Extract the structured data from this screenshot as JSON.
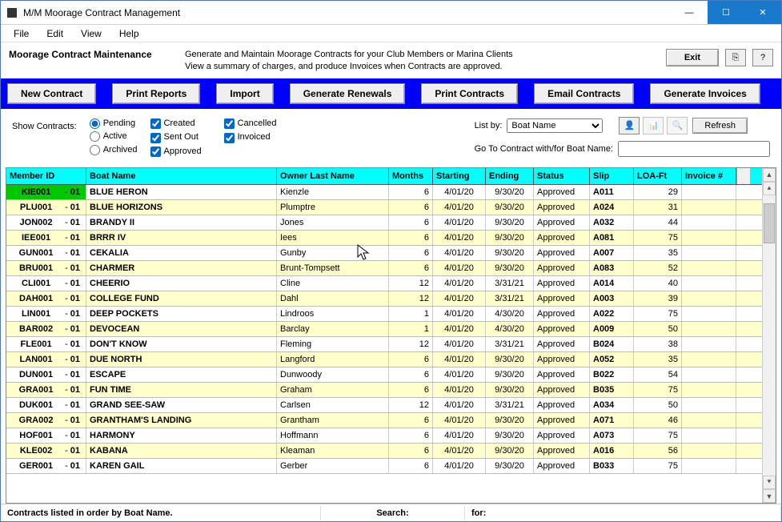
{
  "window": {
    "title": "M/M Moorage Contract Management"
  },
  "menu": {
    "items": [
      "File",
      "Edit",
      "View",
      "Help"
    ]
  },
  "subheader": {
    "title": "Moorage Contract Maintenance",
    "desc_line1": "Generate and Maintain Moorage Contracts for your Club Members or Marina Clients",
    "desc_line2": "View a summary of charges, and produce Invoices when Contracts are approved.",
    "exit": "Exit"
  },
  "toolbar": {
    "new_contract": "New Contract",
    "print_reports": "Print Reports",
    "import": "Import",
    "generate_renewals": "Generate Renewals",
    "print_contracts": "Print Contracts",
    "email_contracts": "Email Contracts",
    "generate_invoices": "Generate Invoices"
  },
  "filters": {
    "show_label": "Show Contracts:",
    "radios": {
      "pending": "Pending",
      "active": "Active",
      "archived": "Archived"
    },
    "checks": {
      "created": "Created",
      "sent_out": "Sent Out",
      "approved": "Approved",
      "cancelled": "Cancelled",
      "invoiced": "Invoiced"
    },
    "list_by_label": "List by:",
    "list_by_value": "Boat Name",
    "goto_label": "Go To Contract with/for Boat Name:",
    "goto_value": "",
    "refresh": "Refresh"
  },
  "table": {
    "headers": {
      "member": "Member ID",
      "boat": "Boat Name",
      "owner": "Owner Last Name",
      "months": "Months",
      "start": "Starting",
      "end": "Ending",
      "status": "Status",
      "slip": "Slip",
      "loa": "LOA-Ft",
      "invoice": "Invoice #"
    },
    "rows": [
      {
        "mid": "KIE001",
        "seq": "01",
        "boat": "BLUE HERON",
        "owner": "Kienzle",
        "months": "6",
        "start": "4/01/20",
        "end": "9/30/20",
        "status": "Approved",
        "slip": "A011",
        "loa": "29",
        "inv": "",
        "green": true
      },
      {
        "mid": "PLU001",
        "seq": "01",
        "boat": "BLUE HORIZONS",
        "owner": "Plumptre",
        "months": "6",
        "start": "4/01/20",
        "end": "9/30/20",
        "status": "Approved",
        "slip": "A024",
        "loa": "31",
        "inv": ""
      },
      {
        "mid": "JON002",
        "seq": "01",
        "boat": "BRANDY II",
        "owner": "Jones",
        "months": "6",
        "start": "4/01/20",
        "end": "9/30/20",
        "status": "Approved",
        "slip": "A032",
        "loa": "44",
        "inv": ""
      },
      {
        "mid": "IEE001",
        "seq": "01",
        "boat": "BRRR IV",
        "owner": "Iees",
        "months": "6",
        "start": "4/01/20",
        "end": "9/30/20",
        "status": "Approved",
        "slip": "A081",
        "loa": "75",
        "inv": ""
      },
      {
        "mid": "GUN001",
        "seq": "01",
        "boat": "CEKALIA",
        "owner": "Gunby",
        "months": "6",
        "start": "4/01/20",
        "end": "9/30/20",
        "status": "Approved",
        "slip": "A007",
        "loa": "35",
        "inv": ""
      },
      {
        "mid": "BRU001",
        "seq": "01",
        "boat": "CHARMER",
        "owner": "Brunt-Tompsett",
        "months": "6",
        "start": "4/01/20",
        "end": "9/30/20",
        "status": "Approved",
        "slip": "A083",
        "loa": "52",
        "inv": ""
      },
      {
        "mid": "CLI001",
        "seq": "01",
        "boat": "CHEERIO",
        "owner": "Cline",
        "months": "12",
        "start": "4/01/20",
        "end": "3/31/21",
        "status": "Approved",
        "slip": "A014",
        "loa": "40",
        "inv": ""
      },
      {
        "mid": "DAH001",
        "seq": "01",
        "boat": "COLLEGE FUND",
        "owner": "Dahl",
        "months": "12",
        "start": "4/01/20",
        "end": "3/31/21",
        "status": "Approved",
        "slip": "A003",
        "loa": "39",
        "inv": ""
      },
      {
        "mid": "LIN001",
        "seq": "01",
        "boat": "DEEP POCKETS",
        "owner": "Lindroos",
        "months": "1",
        "start": "4/01/20",
        "end": "4/30/20",
        "status": "Approved",
        "slip": "A022",
        "loa": "75",
        "inv": ""
      },
      {
        "mid": "BAR002",
        "seq": "01",
        "boat": "DEVOCEAN",
        "owner": "Barclay",
        "months": "1",
        "start": "4/01/20",
        "end": "4/30/20",
        "status": "Approved",
        "slip": "A009",
        "loa": "50",
        "inv": ""
      },
      {
        "mid": "FLE001",
        "seq": "01",
        "boat": "DON'T KNOW",
        "owner": "Fleming",
        "months": "12",
        "start": "4/01/20",
        "end": "3/31/21",
        "status": "Approved",
        "slip": "B024",
        "loa": "38",
        "inv": ""
      },
      {
        "mid": "LAN001",
        "seq": "01",
        "boat": "DUE NORTH",
        "owner": "Langford",
        "months": "6",
        "start": "4/01/20",
        "end": "9/30/20",
        "status": "Approved",
        "slip": "A052",
        "loa": "35",
        "inv": ""
      },
      {
        "mid": "DUN001",
        "seq": "01",
        "boat": "ESCAPE",
        "owner": "Dunwoody",
        "months": "6",
        "start": "4/01/20",
        "end": "9/30/20",
        "status": "Approved",
        "slip": "B022",
        "loa": "54",
        "inv": ""
      },
      {
        "mid": "GRA001",
        "seq": "01",
        "boat": "FUN TIME",
        "owner": "Graham",
        "months": "6",
        "start": "4/01/20",
        "end": "9/30/20",
        "status": "Approved",
        "slip": "B035",
        "loa": "75",
        "inv": ""
      },
      {
        "mid": "DUK001",
        "seq": "01",
        "boat": "GRAND SEE-SAW",
        "owner": "Carlsen",
        "months": "12",
        "start": "4/01/20",
        "end": "3/31/21",
        "status": "Approved",
        "slip": "A034",
        "loa": "50",
        "inv": ""
      },
      {
        "mid": "GRA002",
        "seq": "01",
        "boat": "GRANTHAM'S LANDING",
        "owner": "Grantham",
        "months": "6",
        "start": "4/01/20",
        "end": "9/30/20",
        "status": "Approved",
        "slip": "A071",
        "loa": "46",
        "inv": ""
      },
      {
        "mid": "HOF001",
        "seq": "01",
        "boat": "HARMONY",
        "owner": "Hoffmann",
        "months": "6",
        "start": "4/01/20",
        "end": "9/30/20",
        "status": "Approved",
        "slip": "A073",
        "loa": "75",
        "inv": ""
      },
      {
        "mid": "KLE002",
        "seq": "01",
        "boat": "KABANA",
        "owner": "Kleaman",
        "months": "6",
        "start": "4/01/20",
        "end": "9/30/20",
        "status": "Approved",
        "slip": "A016",
        "loa": "56",
        "inv": ""
      },
      {
        "mid": "GER001",
        "seq": "01",
        "boat": "KAREN GAIL",
        "owner": "Gerber",
        "months": "6",
        "start": "4/01/20",
        "end": "9/30/20",
        "status": "Approved",
        "slip": "B033",
        "loa": "75",
        "inv": ""
      }
    ]
  },
  "statusbar": {
    "left": "Contracts listed in order by Boat Name.",
    "search_label": "Search:",
    "for_label": "for:"
  }
}
